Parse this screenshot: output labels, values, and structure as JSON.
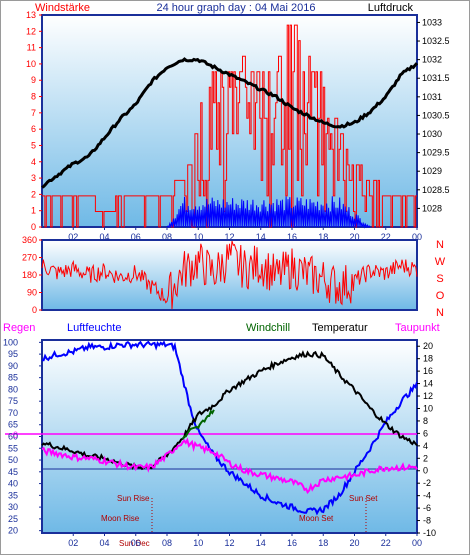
{
  "header": {
    "left_label": "Windstärke",
    "title": "24 hour graph day : 04 Mai 2016",
    "right_label": "Luftdruck"
  },
  "colors": {
    "frame_blue": "#1a2f9a",
    "wind_red": "#ff0000",
    "gust_blue": "#0000ff",
    "pressure": "#000000",
    "humidity": "#0000ff",
    "windchill": "#006400",
    "temperature": "#000000",
    "dewpoint": "#ff00ff",
    "gradient_top": "#ffffff",
    "gradient_bottom": "#6fb9e6"
  },
  "compass": [
    "N",
    "W",
    "S",
    "O",
    "N"
  ],
  "legend": {
    "regen": "Regen",
    "luftfeuchte": "Luftfeuchte",
    "windchill": "Windchill",
    "temperatur": "Temperatur",
    "taupunkt": "Taupunkt"
  },
  "annotations": {
    "sun_rise": "Sun Rise",
    "moon_rise": "Moon Rise",
    "sun_dec": "Sun Dec",
    "moon_set": "Moon Set",
    "sun_set": "Sun Set",
    "zero_mark": "0"
  },
  "x_ticks": [
    "02",
    "04",
    "06",
    "08",
    "10",
    "12",
    "14",
    "16",
    "18",
    "20",
    "22",
    "00"
  ],
  "chart_data": [
    {
      "type": "line",
      "name": "wind-pressure",
      "title": "24 hour graph day : 04 Mai 2016",
      "x_range_hours": [
        0,
        24
      ],
      "y_left": {
        "label": "Windstärke",
        "range": [
          0,
          13
        ],
        "ticks": [
          "0",
          "1",
          "2",
          "3",
          "4",
          "5",
          "6",
          "7",
          "8",
          "9",
          "10",
          "11",
          "12",
          "13"
        ]
      },
      "y_right": {
        "label": "Luftdruck",
        "range": [
          1027.5,
          1033.2
        ],
        "ticks": [
          "1028",
          "1028.5",
          "1029",
          "1029.5",
          "1030",
          "1030.5",
          "1031",
          "1031.5",
          "1032",
          "1032.5",
          "1033"
        ]
      },
      "pressure": {
        "x": [
          0,
          1,
          2,
          3,
          4,
          5,
          6,
          7,
          8,
          9,
          10,
          11,
          12,
          13,
          14,
          15,
          16,
          17,
          18,
          19,
          20,
          21,
          22,
          23,
          24
        ],
        "y": [
          1028.6,
          1028.9,
          1029.2,
          1029.4,
          1029.9,
          1030.4,
          1030.8,
          1031.4,
          1031.8,
          1032.0,
          1032.0,
          1031.8,
          1031.6,
          1031.4,
          1031.2,
          1031.0,
          1030.7,
          1030.5,
          1030.3,
          1030.2,
          1030.3,
          1030.6,
          1031.0,
          1031.6,
          1031.9
        ]
      },
      "wind_envelope": {
        "x": [
          0,
          1,
          2,
          3,
          4,
          5,
          6,
          7,
          8,
          9,
          10,
          11,
          12,
          13,
          14,
          15,
          16,
          17,
          18,
          19,
          20,
          21,
          22,
          23,
          24
        ],
        "y": [
          1.9,
          1.9,
          1.9,
          1.9,
          0.5,
          1.9,
          1.9,
          1.9,
          1.9,
          2.9,
          6.7,
          10.0,
          9.0,
          10.5,
          9.0,
          10.0,
          12.8,
          10.5,
          9.0,
          6.0,
          3.8,
          2.9,
          1.9,
          1.9,
          1.9
        ]
      },
      "gust_envelope": {
        "x": [
          8,
          9,
          10,
          11,
          12,
          13,
          14,
          15,
          16,
          17,
          18,
          19,
          20,
          21
        ],
        "y": [
          0,
          1.9,
          1.9,
          1.9,
          1.9,
          1.9,
          1.9,
          1.9,
          1.9,
          1.9,
          1.9,
          1.9,
          1.0,
          0
        ]
      }
    },
    {
      "type": "line",
      "name": "wind-direction",
      "y_range": [
        0,
        360
      ],
      "y_ticks": [
        "0",
        "90",
        "180",
        "270",
        "360"
      ],
      "x": [
        0,
        1,
        2,
        3,
        4,
        5,
        6,
        7,
        8,
        9,
        10,
        11,
        12,
        13,
        14,
        15,
        16,
        17,
        18,
        19,
        20,
        21,
        22,
        23,
        24
      ],
      "y": [
        230,
        190,
        210,
        180,
        200,
        170,
        190,
        120,
        60,
        200,
        250,
        190,
        270,
        210,
        240,
        170,
        220,
        180,
        160,
        120,
        150,
        200,
        190,
        230,
        210
      ]
    },
    {
      "type": "line",
      "name": "climate",
      "y_left": {
        "labels": [
          "Regen",
          "Luftfeuchte"
        ],
        "range": [
          19,
          101
        ],
        "ticks": [
          "20",
          "25",
          "30",
          "35",
          "40",
          "45",
          "50",
          "55",
          "60",
          "65",
          "70",
          "75",
          "80",
          "85",
          "90",
          "95",
          "100"
        ]
      },
      "y_right": {
        "range": [
          -10,
          21
        ],
        "ticks": [
          "-10",
          "-8",
          "-6",
          "-4",
          "-2",
          "0",
          "2",
          "4",
          "6",
          "8",
          "10",
          "12",
          "14",
          "16",
          "18",
          "20"
        ]
      },
      "series": [
        {
          "name": "Luftfeuchte",
          "axis": "left",
          "x": [
            0,
            1,
            2,
            3,
            4,
            5,
            6,
            7,
            8,
            8.5,
            9,
            9.5,
            10,
            11,
            12,
            13,
            14,
            15,
            16,
            17,
            18,
            19,
            20,
            21,
            22,
            23,
            24
          ],
          "y": [
            93,
            95,
            96,
            98,
            98,
            99,
            99,
            99,
            99,
            98,
            85,
            72,
            62,
            52,
            45,
            40,
            35,
            32,
            30,
            28,
            29,
            35,
            45,
            55,
            66,
            75,
            82
          ]
        },
        {
          "name": "Temperatur",
          "axis": "right",
          "x": [
            0,
            1,
            2,
            3,
            4,
            5,
            6,
            7,
            8,
            9,
            10,
            11,
            12,
            13,
            14,
            15,
            16,
            17,
            18,
            19,
            20,
            21,
            22,
            23,
            24
          ],
          "y": [
            4.5,
            3.8,
            3.2,
            2.4,
            2.0,
            1.2,
            0.6,
            0.6,
            2.5,
            5.3,
            9.0,
            10.5,
            13.0,
            14.5,
            16.0,
            17.2,
            18.2,
            18.8,
            18.5,
            15.5,
            13.0,
            10.0,
            7.5,
            5.5,
            4.2
          ]
        },
        {
          "name": "Windchill",
          "axis": "right",
          "x": [
            9,
            9.5,
            10,
            10.5,
            11
          ],
          "y": [
            5.0,
            6.5,
            7.0,
            8.5,
            9.8
          ]
        },
        {
          "name": "Taupunkt",
          "axis": "right",
          "x": [
            0,
            1,
            2,
            3,
            4,
            5,
            6,
            7,
            8,
            9,
            10,
            11,
            12,
            13,
            14,
            15,
            16,
            17,
            18,
            19,
            20,
            21,
            22,
            23,
            24
          ],
          "y": [
            3.2,
            2.8,
            2.2,
            2.0,
            1.6,
            1.0,
            0.5,
            0.6,
            2.4,
            4.8,
            3.8,
            3.0,
            1.2,
            0.0,
            -0.6,
            -1.2,
            -1.8,
            -3.0,
            -1.5,
            -1.0,
            -0.8,
            0.0,
            0.5,
            0.5,
            0.6
          ]
        }
      ],
      "reference_lines": {
        "humidity_marker": 60,
        "zero_temp": 0
      }
    }
  ]
}
